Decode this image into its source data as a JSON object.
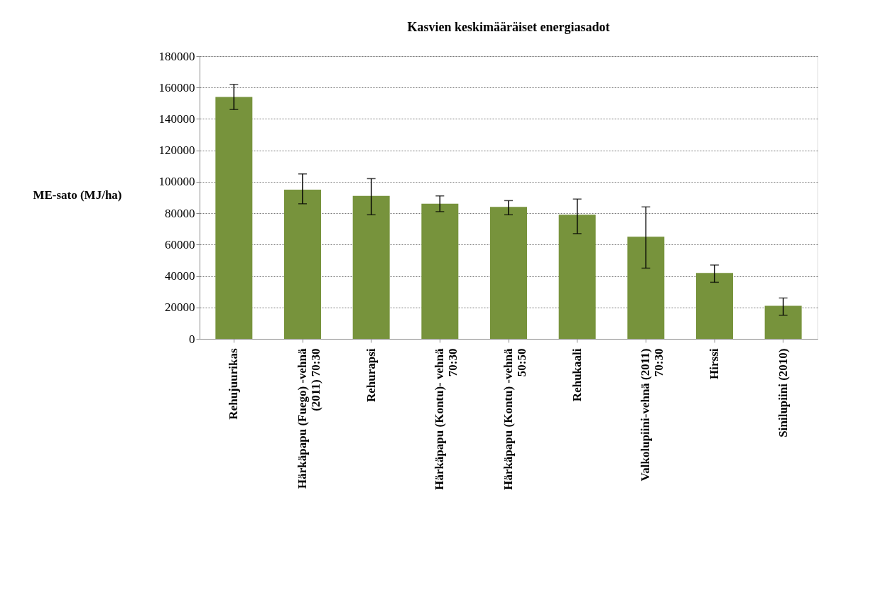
{
  "chart_data": {
    "type": "bar",
    "title": "Kasvien keskimääräiset energiasadot",
    "ylabel": "ME-sato (MJ/ha)",
    "categories": [
      "Rehujuurikas",
      "Härkäpapu (Fuego) -vehnä (2011) 70:30",
      "Rehurapsi",
      "Härkäpapu (Kontu)- vehnä 70:30",
      "Härkäpapu (Kontu) -vehnä 50:50",
      "Rehukaali",
      "Valkolupiini-vehnä (2011) 70:30",
      "Hirssi",
      "Sinilupiini (2010)"
    ],
    "values": [
      154000,
      95000,
      91000,
      86000,
      84000,
      79000,
      65000,
      42000,
      21000
    ],
    "errors": [
      [
        146000,
        162000
      ],
      [
        86000,
        105000
      ],
      [
        79000,
        102000
      ],
      [
        81000,
        91000
      ],
      [
        79000,
        88000
      ],
      [
        67000,
        89000
      ],
      [
        45000,
        84000
      ],
      [
        36000,
        47000
      ],
      [
        15000,
        26000
      ]
    ],
    "color": "#77933c",
    "ylim": [
      0,
      180000
    ],
    "yticks": [
      0,
      20000,
      40000,
      60000,
      80000,
      100000,
      120000,
      140000,
      160000,
      180000
    ],
    "grid": "y"
  }
}
